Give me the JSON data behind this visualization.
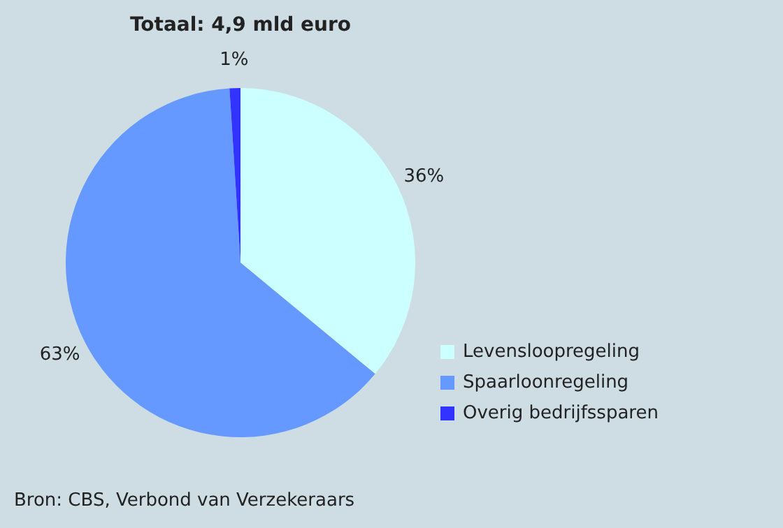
{
  "chart_data": {
    "type": "pie",
    "title": "Totaal: 4,9 mld euro",
    "categories": [
      "Levensloopregeling",
      "Spaarloonregeling",
      "Overig bedrijfssparen"
    ],
    "values": [
      36,
      63,
      1
    ],
    "colors": [
      "#ccffff",
      "#6699ff",
      "#3333ff"
    ],
    "value_labels": [
      "36%",
      "63%",
      "1%"
    ],
    "legend": "bottom right",
    "annotations": [
      "Bron: CBS, Verbond van Verzekeraars"
    ]
  }
}
